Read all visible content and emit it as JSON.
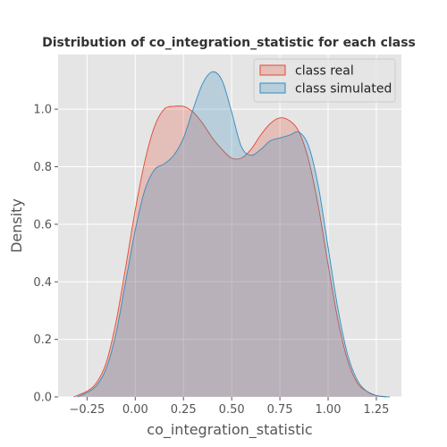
{
  "chart_data": {
    "type": "area",
    "title": "Distribution of co_integration_statistic for each class",
    "xlabel": "co_integration_statistic",
    "ylabel": "Density",
    "xlim": [
      -0.4,
      1.38
    ],
    "ylim": [
      0,
      1.19
    ],
    "xticks": [
      -0.25,
      0.0,
      0.25,
      0.5,
      0.75,
      1.0,
      1.25
    ],
    "xtick_labels": [
      "−0.25",
      "0.00",
      "0.25",
      "0.50",
      "0.75",
      "1.00",
      "1.25"
    ],
    "yticks": [
      0.0,
      0.2,
      0.4,
      0.6,
      0.8,
      1.0
    ],
    "ytick_labels": [
      "0.0",
      "0.2",
      "0.4",
      "0.6",
      "0.8",
      "1.0"
    ],
    "grid": true,
    "legend_position": "top-right",
    "series": [
      {
        "name": "class real",
        "color": "#E24A33",
        "x": [
          -0.32,
          -0.25,
          -0.2,
          -0.15,
          -0.1,
          -0.05,
          0.0,
          0.05,
          0.1,
          0.15,
          0.2,
          0.25,
          0.3,
          0.35,
          0.4,
          0.45,
          0.5,
          0.55,
          0.6,
          0.65,
          0.7,
          0.75,
          0.8,
          0.85,
          0.9,
          0.95,
          1.0,
          1.05,
          1.1,
          1.15,
          1.2,
          1.25,
          1.3
        ],
        "values": [
          0.0,
          0.02,
          0.05,
          0.12,
          0.26,
          0.45,
          0.65,
          0.82,
          0.94,
          1.0,
          1.01,
          1.01,
          0.99,
          0.95,
          0.9,
          0.86,
          0.83,
          0.83,
          0.86,
          0.91,
          0.95,
          0.97,
          0.96,
          0.92,
          0.82,
          0.66,
          0.46,
          0.27,
          0.13,
          0.05,
          0.02,
          0.005,
          0.0
        ]
      },
      {
        "name": "class simulated",
        "color": "#348ABD",
        "x": [
          -0.3,
          -0.25,
          -0.2,
          -0.15,
          -0.1,
          -0.05,
          0.0,
          0.05,
          0.1,
          0.15,
          0.2,
          0.25,
          0.3,
          0.35,
          0.4,
          0.45,
          0.5,
          0.55,
          0.6,
          0.65,
          0.7,
          0.75,
          0.8,
          0.85,
          0.9,
          0.95,
          1.0,
          1.05,
          1.1,
          1.15,
          1.2,
          1.25,
          1.32
        ],
        "values": [
          0.0,
          0.015,
          0.04,
          0.1,
          0.22,
          0.4,
          0.58,
          0.72,
          0.79,
          0.81,
          0.84,
          0.9,
          1.0,
          1.09,
          1.13,
          1.1,
          0.99,
          0.87,
          0.84,
          0.86,
          0.89,
          0.9,
          0.91,
          0.92,
          0.87,
          0.73,
          0.52,
          0.31,
          0.15,
          0.06,
          0.02,
          0.005,
          0.0
        ]
      }
    ]
  }
}
